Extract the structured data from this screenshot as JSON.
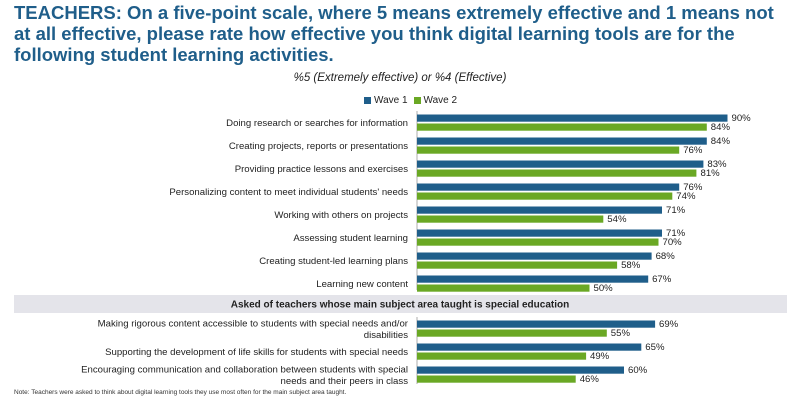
{
  "title": "TEACHERS: On a five-point scale, where 5 means extremely effective and 1 means not at all effective, please rate how effective you think digital learning tools are for the following student learning activities.",
  "subtitle": "%5 (Extremely effective) or %4 (Effective)",
  "note": "Note: Teachers were asked to think about digital learning tools they use most often for the main subject area taught.",
  "section_header": "Asked of teachers whose main subject area taught is special education",
  "colors": {
    "wave1": "#1f5e8a",
    "wave2": "#6aa824",
    "title": "#1f5e8a",
    "band": "#e4e4ea"
  },
  "chart_data": {
    "type": "bar",
    "orientation": "horizontal",
    "unit": "%",
    "categories": [
      "Doing research or searches for information",
      "Creating projects, reports or presentations",
      "Providing practice lessons and exercises",
      "Personalizing content to meet individual students' needs",
      "Working with others on projects",
      "Assessing student learning",
      "Creating student-led learning plans",
      "Learning new content",
      "Making rigorous content accessible to students with special needs and/or disabilities",
      "Supporting the development of life skills for students with special needs",
      "Encouraging communication and collaboration between students with special needs and their peers in class"
    ],
    "series": [
      {
        "name": "Wave 1",
        "values": [
          90,
          84,
          83,
          76,
          71,
          71,
          68,
          67,
          69,
          65,
          60
        ]
      },
      {
        "name": "Wave 2",
        "values": [
          84,
          76,
          81,
          74,
          54,
          70,
          58,
          50,
          55,
          49,
          46
        ]
      }
    ],
    "xlim": [
      0,
      100
    ],
    "legend": "top"
  }
}
